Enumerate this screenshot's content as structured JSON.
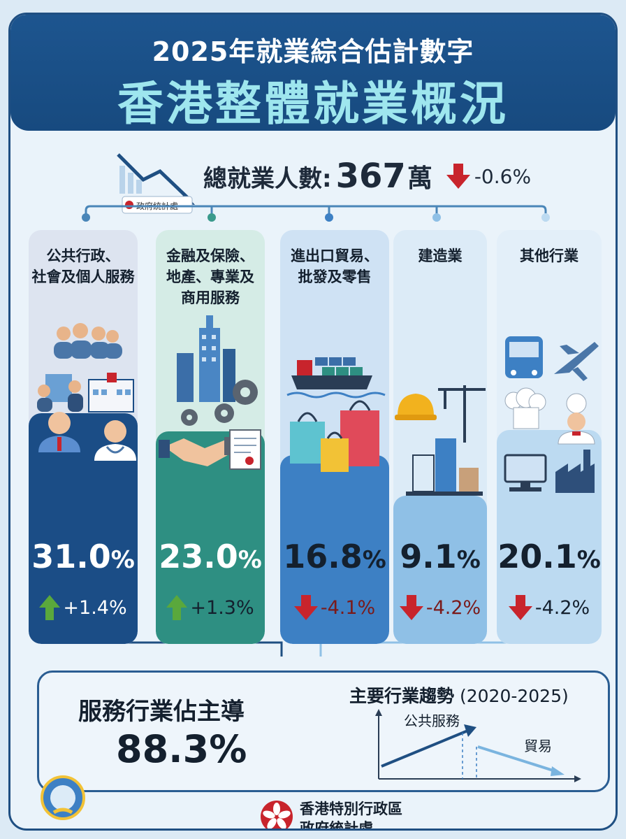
{
  "header": {
    "subtitle": "2025年就業綜合估計數字",
    "title": "香港整體就業概況"
  },
  "total": {
    "label": "總就業人數:",
    "value": "367",
    "unit": "萬",
    "change": "-0.6%",
    "direction": "down"
  },
  "logo_text": "政府統計處",
  "sectors": [
    {
      "title_lines": [
        "公共行政、",
        "社會及個人服務"
      ],
      "share": "31.0",
      "change": "+1.4%",
      "direction": "up",
      "icons": [
        "people-group-icon",
        "hospital-icon",
        "office-worker-icon",
        "doctor-icon"
      ]
    },
    {
      "title_lines": [
        "金融及保險、",
        "地產、專業及",
        "商用服務"
      ],
      "share": "23.0",
      "change": "+1.3%",
      "direction": "up",
      "icons": [
        "skyscraper-icon",
        "gear-icon",
        "handshake-icon",
        "document-icon"
      ]
    },
    {
      "title_lines": [
        "進出口貿易、",
        "批發及零售"
      ],
      "share": "16.8",
      "change": "-4.1%",
      "direction": "down",
      "icons": [
        "cargo-ship-icon",
        "shopping-bags-icon"
      ]
    },
    {
      "title_lines": [
        "建造業"
      ],
      "share": "9.1",
      "change": "-4.2%",
      "direction": "down",
      "icons": [
        "hard-hat-icon",
        "crane-icon",
        "buildings-icon"
      ]
    },
    {
      "title_lines": [
        "其他行業"
      ],
      "share": "20.1",
      "change": "-4.2%",
      "direction": "down",
      "icons": [
        "bus-icon",
        "airplane-icon",
        "chef-hat-icon",
        "chef-icon",
        "computer-icon",
        "factory-icon"
      ]
    }
  ],
  "summary": {
    "title": "服務行業佔主導",
    "value": "88.3%"
  },
  "trend": {
    "title": "主要行業趨勢",
    "period": "(2020-2025)",
    "up_label": "公共服務",
    "down_label": "貿易"
  },
  "footer": {
    "line1": "香港特別行政區",
    "line2": "政府統計處"
  },
  "colors": {
    "header": "#1d558f",
    "accent_title": "#9ee6ee",
    "up_arrow": "#5aa83c",
    "down_arrow": "#c8242c",
    "col1": "#1b4d86",
    "col2": "#2e8f82",
    "col3": "#3d80c4",
    "col4": "#8fc0e6",
    "col5": "#bcdaf1"
  }
}
